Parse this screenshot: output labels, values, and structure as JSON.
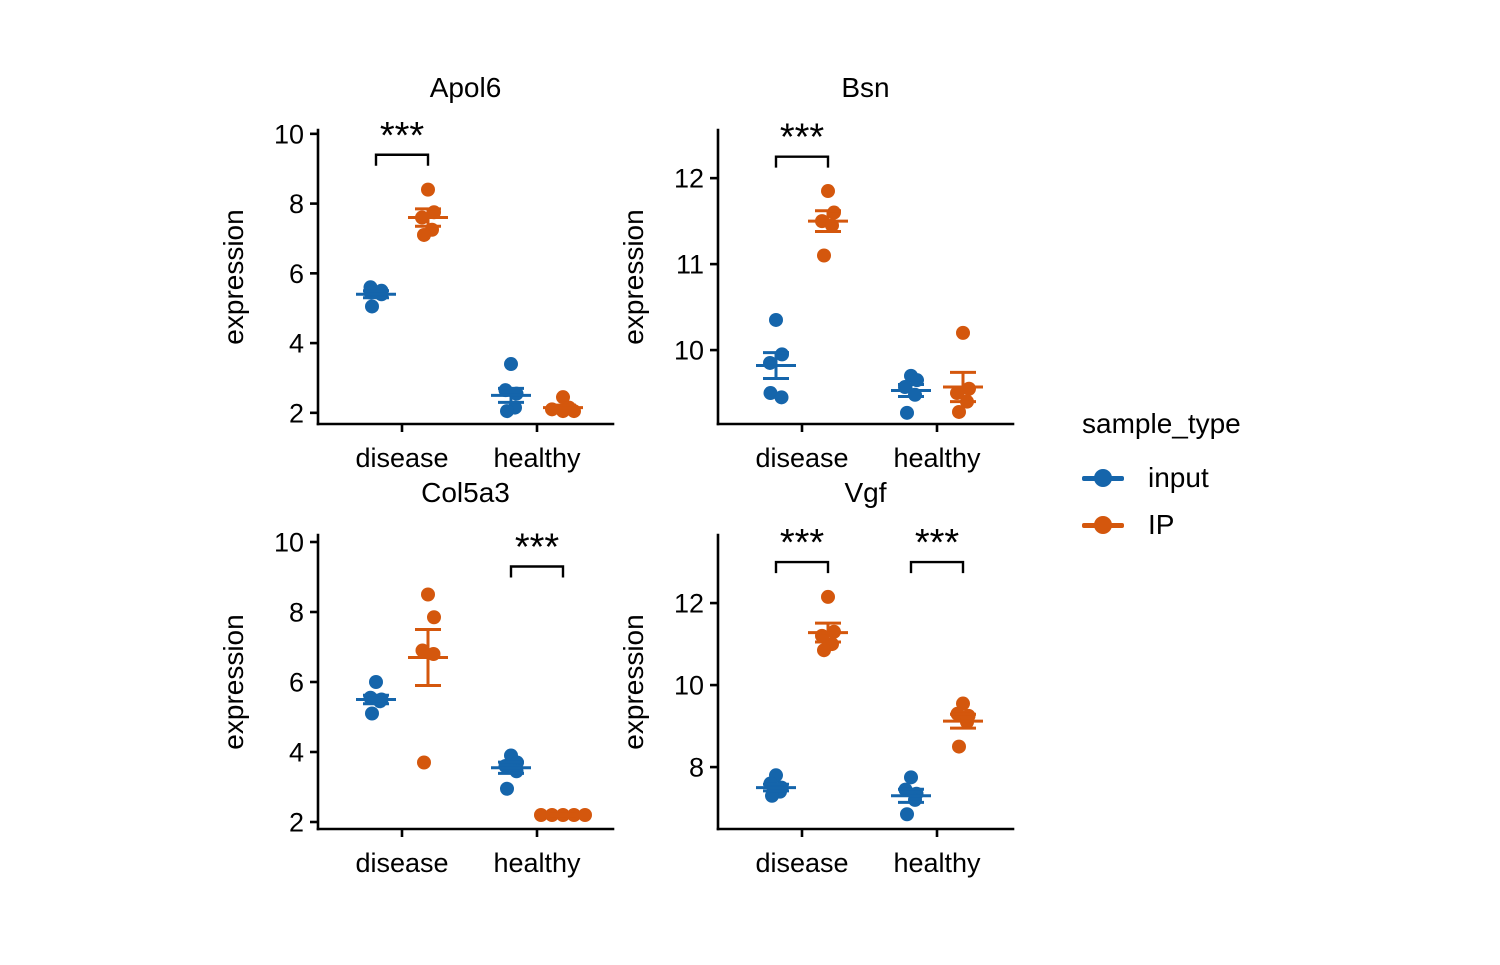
{
  "figure": {
    "background": "#ffffff",
    "text_color": "#000000",
    "axis_color": "#000000"
  },
  "legend": {
    "title": "sample_type",
    "items": [
      {
        "label": "input",
        "color": "#1565AB"
      },
      {
        "label": "IP",
        "color": "#D4570D"
      }
    ]
  },
  "chart_data": [
    {
      "type": "scatter",
      "title": "Apol6",
      "ylabel": "expression",
      "categories": [
        "disease",
        "healthy"
      ],
      "yticks": [
        2,
        4,
        6,
        8,
        10
      ],
      "ylim": [
        1.68,
        10.11
      ],
      "series": [
        {
          "name": "input",
          "color": "#1565AB",
          "data": [
            {
              "category": "disease",
              "points": [
                5.6,
                5.5,
                5.45,
                5.4,
                5.05
              ],
              "mean": 5.4,
              "se": 0.1
            },
            {
              "category": "healthy",
              "points": [
                3.4,
                2.65,
                2.55,
                2.15,
                2.05
              ],
              "mean": 2.5,
              "se": 0.2
            }
          ]
        },
        {
          "name": "IP",
          "color": "#D4570D",
          "data": [
            {
              "category": "disease",
              "points": [
                8.4,
                7.75,
                7.6,
                7.25,
                7.1
              ],
              "mean": 7.6,
              "se": 0.25
            },
            {
              "category": "healthy",
              "points": [
                2.45,
                2.15,
                2.1,
                2.05,
                2.05
              ],
              "mean": 2.15,
              "se": 0.07
            }
          ]
        }
      ],
      "significance": [
        {
          "category": "disease",
          "between": [
            "input",
            "IP"
          ],
          "label": "***",
          "y": 9.4
        }
      ]
    },
    {
      "type": "scatter",
      "title": "Bsn",
      "ylabel": "expression",
      "categories": [
        "disease",
        "healthy"
      ],
      "yticks": [
        10,
        11,
        12
      ],
      "ylim": [
        9.14,
        12.56
      ],
      "series": [
        {
          "name": "input",
          "color": "#1565AB",
          "data": [
            {
              "category": "disease",
              "points": [
                10.35,
                9.95,
                9.85,
                9.5,
                9.45
              ],
              "mean": 9.82,
              "se": 0.15
            },
            {
              "category": "healthy",
              "points": [
                9.7,
                9.65,
                9.57,
                9.48,
                9.27
              ],
              "mean": 9.53,
              "se": 0.07
            }
          ]
        },
        {
          "name": "IP",
          "color": "#D4570D",
          "data": [
            {
              "category": "disease",
              "points": [
                11.85,
                11.6,
                11.5,
                11.45,
                11.1
              ],
              "mean": 11.5,
              "se": 0.12
            },
            {
              "category": "healthy",
              "points": [
                10.2,
                9.55,
                9.5,
                9.4,
                9.28
              ],
              "mean": 9.57,
              "se": 0.17
            }
          ]
        }
      ],
      "significance": [
        {
          "category": "disease",
          "between": [
            "input",
            "IP"
          ],
          "label": "***",
          "y": 12.25
        }
      ]
    },
    {
      "type": "scatter",
      "title": "Col5a3",
      "ylabel": "expression",
      "categories": [
        "disease",
        "healthy"
      ],
      "yticks": [
        2,
        4,
        6,
        8,
        10
      ],
      "ylim": [
        1.8,
        10.2
      ],
      "series": [
        {
          "name": "input",
          "color": "#1565AB",
          "data": [
            {
              "category": "disease",
              "points": [
                6.0,
                5.55,
                5.5,
                5.45,
                5.1
              ],
              "mean": 5.5,
              "se": 0.12
            },
            {
              "category": "healthy",
              "points": [
                3.9,
                3.7,
                3.6,
                3.45,
                2.95
              ],
              "mean": 3.55,
              "se": 0.16
            }
          ]
        },
        {
          "name": "IP",
          "color": "#D4570D",
          "data": [
            {
              "category": "disease",
              "points": [
                8.5,
                7.85,
                6.9,
                6.8,
                3.7
              ],
              "mean": 6.7,
              "se": 0.8
            },
            {
              "category": "healthy",
              "points": [
                2.2,
                2.2,
                2.2,
                2.2,
                2.2
              ],
              "mean": 2.2,
              "se": 0.02
            }
          ]
        }
      ],
      "significance": [
        {
          "category": "healthy",
          "between": [
            "input",
            "IP"
          ],
          "label": "***",
          "y": 9.3
        }
      ]
    },
    {
      "type": "scatter",
      "title": "Vgf",
      "ylabel": "expression",
      "categories": [
        "disease",
        "healthy"
      ],
      "yticks": [
        8,
        10,
        12
      ],
      "ylim": [
        6.49,
        13.66
      ],
      "series": [
        {
          "name": "input",
          "color": "#1565AB",
          "data": [
            {
              "category": "disease",
              "points": [
                7.8,
                7.6,
                7.5,
                7.4,
                7.3
              ],
              "mean": 7.5,
              "se": 0.08
            },
            {
              "category": "healthy",
              "points": [
                7.75,
                7.45,
                7.35,
                7.2,
                6.85
              ],
              "mean": 7.3,
              "se": 0.16
            }
          ]
        },
        {
          "name": "IP",
          "color": "#D4570D",
          "data": [
            {
              "category": "disease",
              "points": [
                12.15,
                11.3,
                11.2,
                11.0,
                10.85
              ],
              "mean": 11.28,
              "se": 0.23
            },
            {
              "category": "healthy",
              "points": [
                9.55,
                9.3,
                9.25,
                9.1,
                8.5
              ],
              "mean": 9.12,
              "se": 0.17
            }
          ]
        }
      ],
      "significance": [
        {
          "category": "disease",
          "between": [
            "input",
            "IP"
          ],
          "label": "***",
          "y": 13.0
        },
        {
          "category": "healthy",
          "between": [
            "input",
            "IP"
          ],
          "label": "***",
          "y": 13.0
        }
      ]
    }
  ]
}
